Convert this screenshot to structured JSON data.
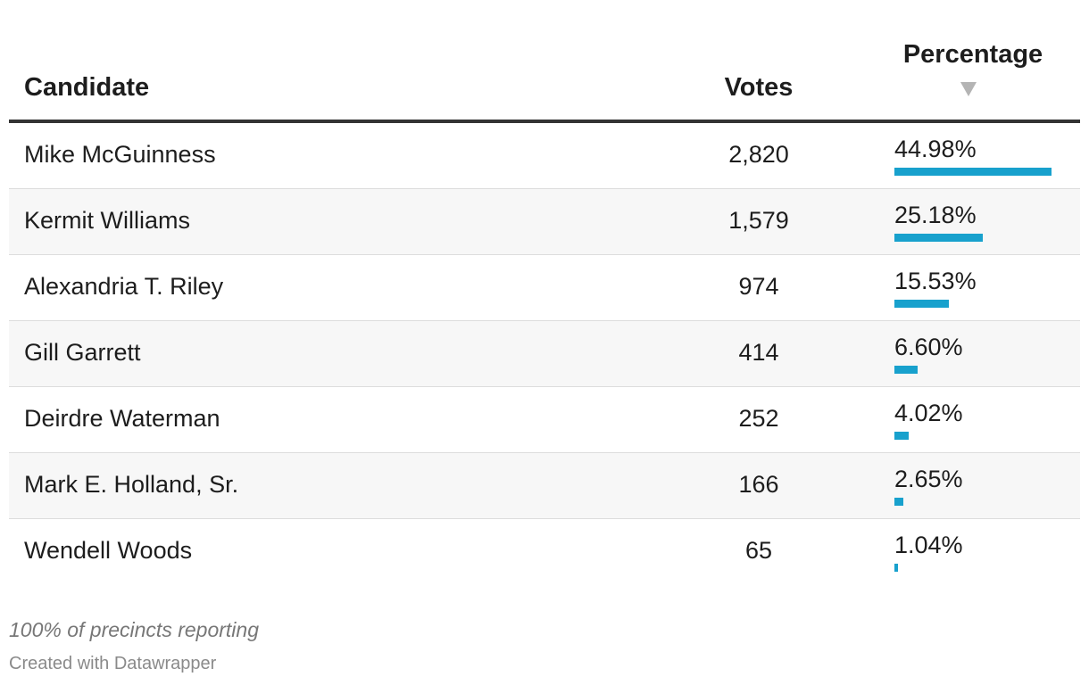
{
  "chart_data": {
    "type": "table",
    "columns": [
      "Candidate",
      "Votes",
      "Percentage"
    ],
    "sort": {
      "column": "Percentage",
      "direction": "descending"
    },
    "bar_color": "#18a1cd",
    "rows": [
      {
        "candidate": "Mike McGuinness",
        "votes": "2,820",
        "votes_value": 2820,
        "pct": "44.98%",
        "pct_value": 44.98
      },
      {
        "candidate": "Kermit Williams",
        "votes": "1,579",
        "votes_value": 1579,
        "pct": "25.18%",
        "pct_value": 25.18
      },
      {
        "candidate": "Alexandria T. Riley",
        "votes": "974",
        "votes_value": 974,
        "pct": "15.53%",
        "pct_value": 15.53
      },
      {
        "candidate": "Gill Garrett",
        "votes": "414",
        "votes_value": 414,
        "pct": "6.60%",
        "pct_value": 6.6
      },
      {
        "candidate": "Deirdre Waterman",
        "votes": "252",
        "votes_value": 252,
        "pct": "4.02%",
        "pct_value": 4.02
      },
      {
        "candidate": "Mark E. Holland, Sr.",
        "votes": "166",
        "votes_value": 166,
        "pct": "2.65%",
        "pct_value": 2.65
      },
      {
        "candidate": "Wendell Woods",
        "votes": "65",
        "votes_value": 65,
        "pct": "1.04%",
        "pct_value": 1.04
      }
    ]
  },
  "header": {
    "candidate": "Candidate",
    "votes": "Votes",
    "percentage": "Percentage",
    "sort_icon": "sort-descending-icon"
  },
  "notes": "100% of precincts reporting",
  "credit": "Created with Datawrapper"
}
